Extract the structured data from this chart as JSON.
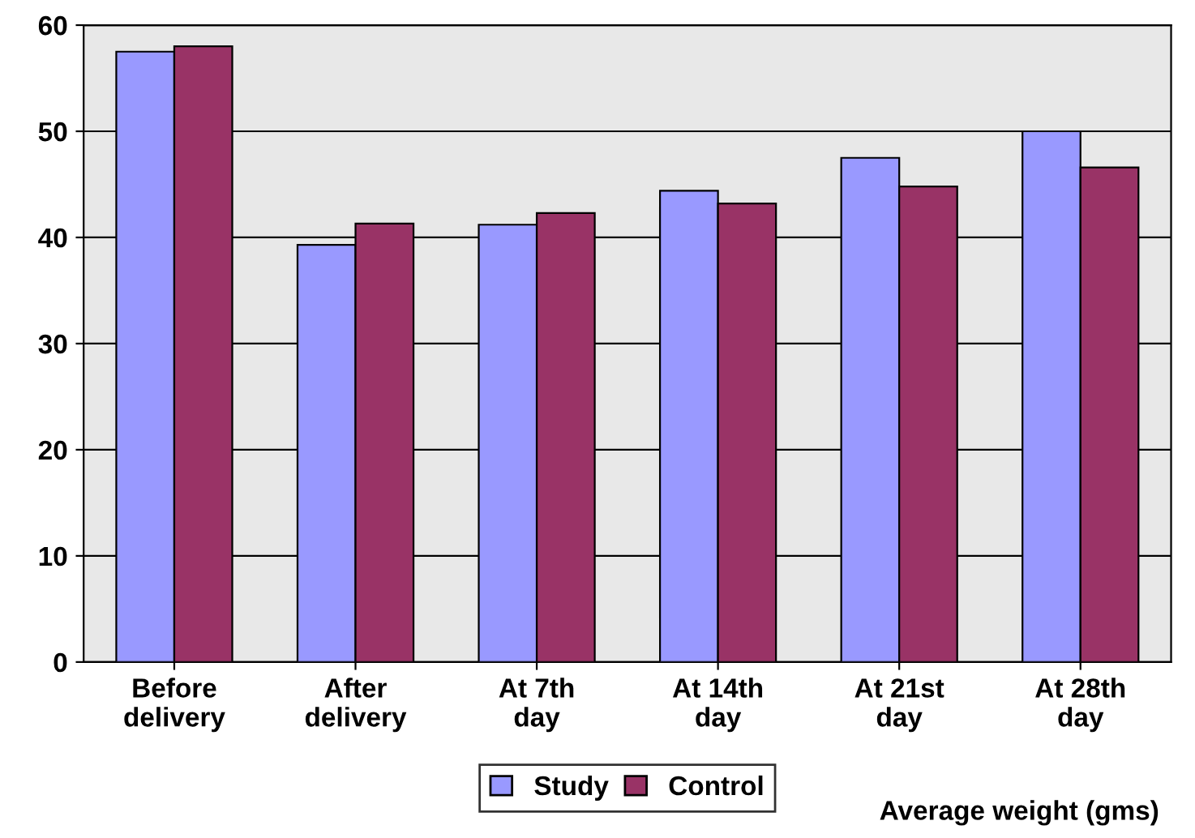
{
  "chart_data": {
    "type": "bar",
    "xlabel": "Average weight (gms)",
    "categories": [
      "Before\ndelivery",
      "After\ndelivery",
      "At 7th\nday",
      "At 14th\nday",
      "At 21st\nday",
      "At 28th\nday"
    ],
    "series": [
      {
        "name": "Study",
        "color": "#9999ff",
        "values": [
          57.5,
          39.3,
          41.2,
          44.4,
          47.5,
          50.0
        ]
      },
      {
        "name": "Control",
        "color": "#993366",
        "values": [
          58.0,
          41.3,
          42.3,
          43.2,
          44.8,
          46.6
        ]
      }
    ],
    "ylim": [
      0,
      60
    ],
    "yticks": [
      0,
      10,
      20,
      30,
      40,
      50,
      60
    ],
    "grid": "y",
    "legend": "bottom"
  }
}
